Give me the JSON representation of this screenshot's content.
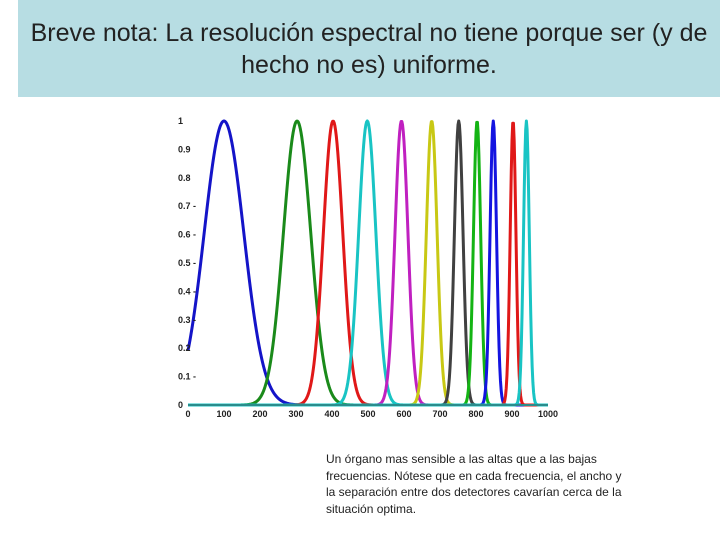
{
  "slide": {
    "title": "Breve nota: La resolución espectral no tiene porque ser (y de hecho no es) uniforme.",
    "caption": "Un órgano mas sensible a las altas que a las bajas frecuencias. Nótese que en cada frecuencia, el ancho y la separación entre dos detectores cavarían cerca de la situación optima."
  },
  "chart_data": {
    "type": "line",
    "title": "",
    "xlabel": "",
    "ylabel": "",
    "xlim": [
      0,
      1000
    ],
    "ylim": [
      0,
      1
    ],
    "x_ticks": [
      0,
      100,
      200,
      300,
      400,
      500,
      600,
      700,
      800,
      900,
      1000
    ],
    "x_tick_labels": [
      "0",
      "100",
      "200",
      "300",
      "400",
      "500",
      "600",
      "700",
      "800",
      "900",
      "1000"
    ],
    "y_ticks": [
      0,
      0.1,
      0.2,
      0.3,
      0.4,
      0.5,
      0.6,
      0.7,
      0.8,
      0.9,
      1
    ],
    "y_tick_labels": [
      "0",
      "0.1 -",
      "0.2",
      "0.3 -",
      "0.4 -",
      "0.5 -",
      "0.6 -",
      "0.7 -",
      "0.8",
      "0.9",
      "1"
    ],
    "grid": false,
    "legend": "none",
    "series": [
      {
        "center": 100,
        "width": 55,
        "color": "#1414c8"
      },
      {
        "center": 303,
        "width": 38,
        "color": "#1a8a1a"
      },
      {
        "center": 403,
        "width": 27,
        "color": "#e01818"
      },
      {
        "center": 498,
        "width": 24,
        "color": "#19c4c4"
      },
      {
        "center": 593,
        "width": 18,
        "color": "#c020c0"
      },
      {
        "center": 677,
        "width": 15,
        "color": "#c8c814"
      },
      {
        "center": 752,
        "width": 12,
        "color": "#404040"
      },
      {
        "center": 803,
        "width": 10,
        "color": "#14b414"
      },
      {
        "center": 848,
        "width": 9,
        "color": "#1414e0"
      },
      {
        "center": 903,
        "width": 8,
        "color": "#e01818"
      },
      {
        "center": 940,
        "width": 8,
        "color": "#19c4c4"
      }
    ]
  }
}
